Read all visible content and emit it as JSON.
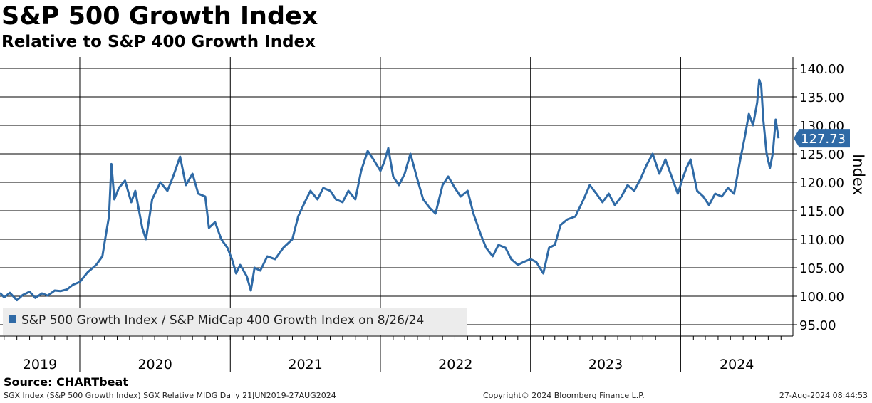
{
  "header": {
    "title": "S&P 500 Growth Index",
    "subtitle": "Relative to S&P 400 Growth Index"
  },
  "footer": {
    "source": "Source: CHARTbeat",
    "info": "SGX Index (S&P 500 Growth Index) SGX Relative MIDG  Daily 21JUN2019-27AUG2024",
    "copyright": "Copyright© 2024 Bloomberg Finance L.P.",
    "timestamp": "27-Aug-2024 08:44:53"
  },
  "colors": {
    "line": "#2f6aa6",
    "grid": "#000000",
    "legend_bg": "#ececec",
    "last_value_bg": "#2f6aa6"
  },
  "chart_data": {
    "type": "line",
    "ylabel": "Index",
    "ylim": [
      93.0,
      142.0
    ],
    "yticks": [
      95,
      100,
      105,
      110,
      115,
      120,
      125,
      130,
      135,
      140
    ],
    "ytick_labels": [
      "95.00",
      "100.00",
      "105.00",
      "110.00",
      "115.00",
      "120.00",
      "125.00",
      "130.00",
      "135.00",
      "140.00"
    ],
    "xlim": [
      "2019-06-21",
      "2024-09-30"
    ],
    "year_labels": [
      "2019",
      "2020",
      "2021",
      "2022",
      "2023",
      "2024"
    ],
    "year_boundaries": [
      "2020-01-01",
      "2021-01-01",
      "2022-01-01",
      "2023-01-01",
      "2024-01-01"
    ],
    "legend": {
      "label": "S&P 500 Growth Index / S&P MidCap 400 Growth Index on 8/26/24",
      "position": "bottom-left"
    },
    "last_value": "127.73",
    "grid": true,
    "series": [
      {
        "name": "S&P 500 Growth Index / S&P MidCap 400 Growth Index on 8/26/24",
        "points": [
          [
            "2019-06-21",
            100.6
          ],
          [
            "2019-07-01",
            99.8
          ],
          [
            "2019-07-15",
            100.6
          ],
          [
            "2019-08-01",
            99.3
          ],
          [
            "2019-08-15",
            100.2
          ],
          [
            "2019-09-01",
            100.8
          ],
          [
            "2019-09-15",
            99.7
          ],
          [
            "2019-10-01",
            100.5
          ],
          [
            "2019-10-15",
            100.1
          ],
          [
            "2019-11-01",
            101.0
          ],
          [
            "2019-11-15",
            100.9
          ],
          [
            "2019-12-01",
            101.2
          ],
          [
            "2019-12-15",
            102.0
          ],
          [
            "2020-01-01",
            102.5
          ],
          [
            "2020-01-20",
            104.2
          ],
          [
            "2020-02-10",
            105.5
          ],
          [
            "2020-02-25",
            107.0
          ],
          [
            "2020-03-05",
            111.0
          ],
          [
            "2020-03-12",
            114.0
          ],
          [
            "2020-03-18",
            123.2
          ],
          [
            "2020-03-25",
            117.0
          ],
          [
            "2020-04-05",
            119.0
          ],
          [
            "2020-04-20",
            120.3
          ],
          [
            "2020-05-05",
            116.5
          ],
          [
            "2020-05-15",
            118.5
          ],
          [
            "2020-06-01",
            112.0
          ],
          [
            "2020-06-10",
            110.0
          ],
          [
            "2020-06-25",
            117.0
          ],
          [
            "2020-07-15",
            120.0
          ],
          [
            "2020-08-01",
            118.5
          ],
          [
            "2020-08-15",
            121.0
          ],
          [
            "2020-09-01",
            124.5
          ],
          [
            "2020-09-15",
            119.5
          ],
          [
            "2020-10-01",
            121.5
          ],
          [
            "2020-10-15",
            118.0
          ],
          [
            "2020-11-01",
            117.5
          ],
          [
            "2020-11-10",
            112.0
          ],
          [
            "2020-11-25",
            113.0
          ],
          [
            "2020-12-10",
            110.0
          ],
          [
            "2020-12-25",
            108.5
          ],
          [
            "2021-01-05",
            106.5
          ],
          [
            "2021-01-15",
            104.0
          ],
          [
            "2021-01-25",
            105.5
          ],
          [
            "2021-02-10",
            103.5
          ],
          [
            "2021-02-20",
            101.0
          ],
          [
            "2021-03-01",
            105.0
          ],
          [
            "2021-03-15",
            104.5
          ],
          [
            "2021-04-01",
            107.0
          ],
          [
            "2021-04-20",
            106.5
          ],
          [
            "2021-05-10",
            108.5
          ],
          [
            "2021-06-01",
            110.0
          ],
          [
            "2021-06-15",
            114.0
          ],
          [
            "2021-07-01",
            116.5
          ],
          [
            "2021-07-15",
            118.5
          ],
          [
            "2021-08-01",
            117.0
          ],
          [
            "2021-08-15",
            119.0
          ],
          [
            "2021-09-01",
            118.5
          ],
          [
            "2021-09-15",
            117.0
          ],
          [
            "2021-10-01",
            116.5
          ],
          [
            "2021-10-15",
            118.5
          ],
          [
            "2021-11-01",
            117.0
          ],
          [
            "2021-11-15",
            122.0
          ],
          [
            "2021-12-01",
            125.5
          ],
          [
            "2021-12-15",
            124.0
          ],
          [
            "2022-01-01",
            122.0
          ],
          [
            "2022-01-10",
            123.5
          ],
          [
            "2022-01-20",
            126.0
          ],
          [
            "2022-02-01",
            121.0
          ],
          [
            "2022-02-15",
            119.5
          ],
          [
            "2022-03-01",
            121.5
          ],
          [
            "2022-03-15",
            125.0
          ],
          [
            "2022-04-01",
            120.5
          ],
          [
            "2022-04-15",
            117.0
          ],
          [
            "2022-05-01",
            115.5
          ],
          [
            "2022-05-15",
            114.5
          ],
          [
            "2022-06-01",
            119.5
          ],
          [
            "2022-06-15",
            121.0
          ],
          [
            "2022-07-01",
            119.0
          ],
          [
            "2022-07-15",
            117.5
          ],
          [
            "2022-08-01",
            118.5
          ],
          [
            "2022-08-15",
            114.5
          ],
          [
            "2022-09-01",
            111.0
          ],
          [
            "2022-09-15",
            108.5
          ],
          [
            "2022-10-01",
            107.0
          ],
          [
            "2022-10-15",
            109.0
          ],
          [
            "2022-11-01",
            108.5
          ],
          [
            "2022-11-15",
            106.5
          ],
          [
            "2022-12-01",
            105.5
          ],
          [
            "2022-12-15",
            106.0
          ],
          [
            "2023-01-01",
            106.5
          ],
          [
            "2023-01-15",
            106.0
          ],
          [
            "2023-02-01",
            104.0
          ],
          [
            "2023-02-15",
            108.5
          ],
          [
            "2023-03-01",
            109.0
          ],
          [
            "2023-03-15",
            112.5
          ],
          [
            "2023-04-01",
            113.5
          ],
          [
            "2023-04-20",
            114.0
          ],
          [
            "2023-05-10",
            117.0
          ],
          [
            "2023-05-25",
            119.5
          ],
          [
            "2023-06-10",
            118.0
          ],
          [
            "2023-06-25",
            116.5
          ],
          [
            "2023-07-10",
            118.0
          ],
          [
            "2023-07-25",
            116.0
          ],
          [
            "2023-08-10",
            117.5
          ],
          [
            "2023-08-25",
            119.5
          ],
          [
            "2023-09-10",
            118.5
          ],
          [
            "2023-09-25",
            120.5
          ],
          [
            "2023-10-10",
            123.0
          ],
          [
            "2023-10-25",
            125.0
          ],
          [
            "2023-11-10",
            121.5
          ],
          [
            "2023-11-25",
            124.0
          ],
          [
            "2023-12-10",
            121.0
          ],
          [
            "2023-12-25",
            118.0
          ],
          [
            "2024-01-05",
            120.5
          ],
          [
            "2024-01-15",
            122.5
          ],
          [
            "2024-01-25",
            124.0
          ],
          [
            "2024-02-10",
            118.5
          ],
          [
            "2024-02-25",
            117.5
          ],
          [
            "2024-03-10",
            116.0
          ],
          [
            "2024-03-25",
            118.0
          ],
          [
            "2024-04-10",
            117.5
          ],
          [
            "2024-04-25",
            119.0
          ],
          [
            "2024-05-10",
            118.0
          ],
          [
            "2024-05-25",
            124.0
          ],
          [
            "2024-06-05",
            128.0
          ],
          [
            "2024-06-15",
            132.0
          ],
          [
            "2024-06-25",
            130.0
          ],
          [
            "2024-07-05",
            134.0
          ],
          [
            "2024-07-10",
            138.0
          ],
          [
            "2024-07-15",
            137.0
          ],
          [
            "2024-07-20",
            131.0
          ],
          [
            "2024-07-28",
            125.0
          ],
          [
            "2024-08-05",
            122.5
          ],
          [
            "2024-08-12",
            125.0
          ],
          [
            "2024-08-19",
            131.0
          ],
          [
            "2024-08-26",
            127.73
          ]
        ]
      }
    ]
  }
}
